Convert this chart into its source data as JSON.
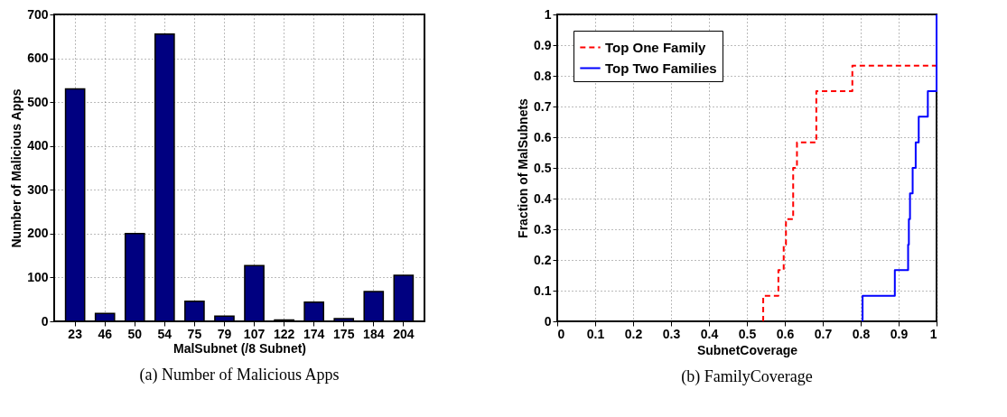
{
  "chart_data": [
    {
      "type": "bar",
      "title": "(a) Number of Malicious Apps",
      "xlabel": "MalSubnet (/8 Subnet)",
      "ylabel": "Number of Malicious Apps",
      "categories": [
        "23",
        "46",
        "50",
        "54",
        "75",
        "79",
        "107",
        "122",
        "174",
        "175",
        "184",
        "204"
      ],
      "values": [
        530,
        18,
        200,
        655,
        46,
        12,
        127,
        3,
        44,
        6,
        68,
        105
      ],
      "color": "#000080",
      "ylim": [
        0,
        700
      ],
      "yticks": [
        0,
        100,
        200,
        300,
        400,
        500,
        600,
        700
      ],
      "grid": true
    },
    {
      "type": "step",
      "title": "(b) FamilyCoverage",
      "xlabel": "SubnetCoverage",
      "ylabel": "Fraction of MalSubnets",
      "series": [
        {
          "name": "Top One Family",
          "color": "#ff0000",
          "line_style": "dashed",
          "x": [
            0.543,
            0.543,
            0.583,
            0.597,
            0.603,
            0.622,
            0.632,
            0.683,
            0.778,
            1.0
          ],
          "values": [
            0,
            0.083,
            0.167,
            0.25,
            0.333,
            0.5,
            0.583,
            0.75,
            0.833,
            0.833
          ]
        },
        {
          "name": "Top Two Families",
          "color": "#0000ff",
          "line_style": "solid",
          "x": [
            0.805,
            0.805,
            0.89,
            0.925,
            0.927,
            0.93,
            0.937,
            0.945,
            0.953,
            0.977,
            1.0
          ],
          "values": [
            0,
            0.083,
            0.167,
            0.25,
            0.333,
            0.417,
            0.5,
            0.583,
            0.667,
            0.75,
            1.0
          ]
        }
      ],
      "xlim": [
        0,
        1
      ],
      "xticks": [
        0,
        0.1,
        0.2,
        0.3,
        0.4,
        0.5,
        0.6,
        0.7,
        0.8,
        0.9,
        1
      ],
      "ylim": [
        0,
        1
      ],
      "yticks": [
        0,
        0.1,
        0.2,
        0.3,
        0.4,
        0.5,
        0.6,
        0.7,
        0.8,
        0.9,
        1
      ],
      "grid": true,
      "legend": "top left"
    }
  ]
}
